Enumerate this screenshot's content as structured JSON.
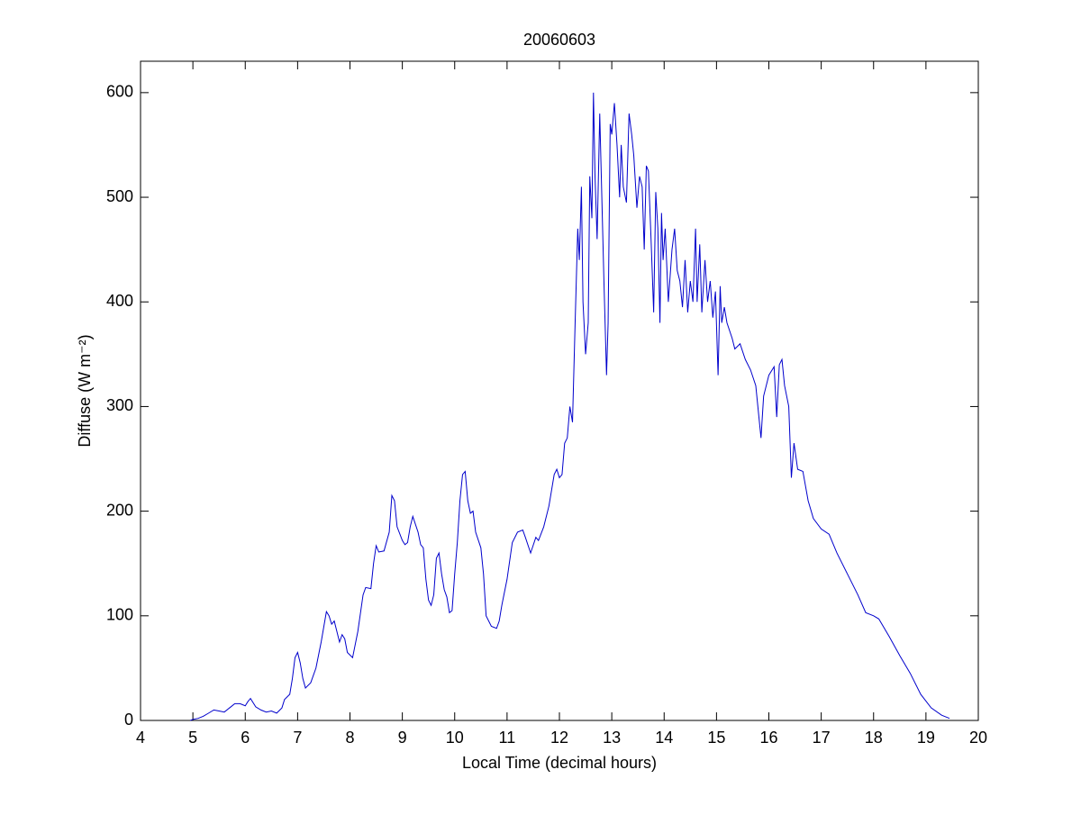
{
  "chart_data": {
    "type": "line",
    "title": "20060603",
    "xlabel": "Local Time (decimal hours)",
    "ylabel": "Diffuse (W m⁻²)",
    "xlim": [
      4,
      20
    ],
    "xticks": [
      4,
      5,
      6,
      7,
      8,
      9,
      10,
      11,
      12,
      13,
      14,
      15,
      16,
      17,
      18,
      19,
      20
    ],
    "ylim": [
      0,
      630
    ],
    "yticks": [
      0,
      100,
      200,
      300,
      400,
      500,
      600
    ],
    "x": [
      4.95,
      5.0,
      5.1,
      5.2,
      5.3,
      5.4,
      5.5,
      5.6,
      5.7,
      5.8,
      5.9,
      6.0,
      6.05,
      6.1,
      6.2,
      6.3,
      6.4,
      6.5,
      6.6,
      6.7,
      6.75,
      6.85,
      6.9,
      6.95,
      7.0,
      7.05,
      7.1,
      7.15,
      7.25,
      7.35,
      7.45,
      7.55,
      7.6,
      7.65,
      7.7,
      7.75,
      7.8,
      7.85,
      7.9,
      7.95,
      8.05,
      8.15,
      8.25,
      8.3,
      8.4,
      8.45,
      8.5,
      8.55,
      8.65,
      8.75,
      8.8,
      8.85,
      8.9,
      9.0,
      9.05,
      9.1,
      9.15,
      9.2,
      9.3,
      9.35,
      9.4,
      9.45,
      9.5,
      9.55,
      9.6,
      9.65,
      9.7,
      9.75,
      9.8,
      9.85,
      9.9,
      9.95,
      10.0,
      10.05,
      10.1,
      10.15,
      10.2,
      10.25,
      10.3,
      10.35,
      10.4,
      10.5,
      10.55,
      10.6,
      10.7,
      10.8,
      10.85,
      10.9,
      11.0,
      11.1,
      11.2,
      11.3,
      11.35,
      11.45,
      11.55,
      11.6,
      11.7,
      11.8,
      11.9,
      11.95,
      12.0,
      12.05,
      12.1,
      12.15,
      12.2,
      12.25,
      12.3,
      12.35,
      12.38,
      12.42,
      12.45,
      12.5,
      12.55,
      12.58,
      12.62,
      12.65,
      12.68,
      12.72,
      12.77,
      12.8,
      12.85,
      12.9,
      12.93,
      12.97,
      13.0,
      13.05,
      13.1,
      13.15,
      13.18,
      13.22,
      13.28,
      13.33,
      13.38,
      13.42,
      13.48,
      13.53,
      13.58,
      13.62,
      13.66,
      13.7,
      13.75,
      13.8,
      13.84,
      13.88,
      13.92,
      13.95,
      13.98,
      14.02,
      14.08,
      14.15,
      14.2,
      14.25,
      14.3,
      14.35,
      14.4,
      14.45,
      14.5,
      14.55,
      14.6,
      14.63,
      14.68,
      14.72,
      14.78,
      14.83,
      14.88,
      14.93,
      14.98,
      15.03,
      15.07,
      15.1,
      15.15,
      15.2,
      15.3,
      15.35,
      15.45,
      15.55,
      15.65,
      15.75,
      15.85,
      15.9,
      16.0,
      16.1,
      16.15,
      16.2,
      16.25,
      16.3,
      16.38,
      16.43,
      16.48,
      16.55,
      16.65,
      16.75,
      16.85,
      17.0,
      17.15,
      17.3,
      17.5,
      17.7,
      17.85,
      18.0,
      18.1,
      18.3,
      18.5,
      18.7,
      18.9,
      19.1,
      19.3,
      19.45
    ],
    "series": [
      {
        "name": "Diffuse",
        "color": "#0000cc",
        "values": [
          0,
          1,
          2,
          4,
          7,
          10,
          9,
          8,
          12,
          16,
          16,
          14,
          18,
          21,
          13,
          10,
          8,
          9,
          7,
          12,
          20,
          25,
          40,
          60,
          65,
          55,
          40,
          31,
          36,
          50,
          75,
          104,
          100,
          92,
          95,
          85,
          75,
          82,
          78,
          65,
          60,
          85,
          120,
          127,
          126,
          150,
          167,
          161,
          162,
          180,
          215,
          210,
          185,
          172,
          168,
          170,
          185,
          195,
          180,
          168,
          165,
          135,
          115,
          110,
          120,
          155,
          160,
          140,
          125,
          118,
          103,
          105,
          140,
          170,
          210,
          235,
          238,
          210,
          198,
          200,
          180,
          165,
          140,
          100,
          90,
          88,
          95,
          110,
          135,
          170,
          180,
          182,
          175,
          160,
          175,
          172,
          185,
          205,
          235,
          240,
          232,
          235,
          265,
          270,
          300,
          285,
          380,
          470,
          440,
          510,
          400,
          350,
          380,
          520,
          480,
          600,
          520,
          460,
          580,
          520,
          420,
          330,
          380,
          570,
          560,
          590,
          550,
          500,
          550,
          510,
          495,
          580,
          560,
          540,
          490,
          520,
          510,
          450,
          530,
          525,
          460,
          390,
          505,
          470,
          380,
          485,
          440,
          470,
          400,
          450,
          470,
          430,
          420,
          395,
          440,
          390,
          420,
          400,
          470,
          400,
          455,
          390,
          440,
          400,
          420,
          385,
          410,
          330,
          415,
          380,
          395,
          380,
          365,
          355,
          360,
          345,
          335,
          320,
          270,
          310,
          330,
          338,
          290,
          340,
          345,
          320,
          300,
          232,
          265,
          240,
          238,
          210,
          193,
          183,
          178,
          160,
          140,
          120,
          103,
          100,
          97,
          80,
          62,
          45,
          25,
          12,
          5,
          2
        ]
      }
    ]
  }
}
